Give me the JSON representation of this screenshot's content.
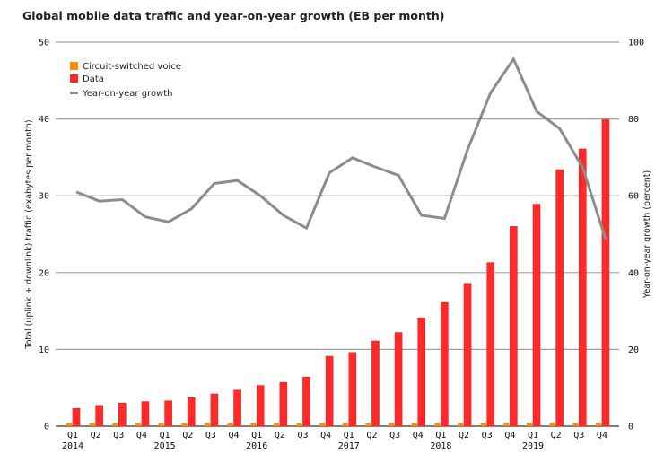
{
  "chart_data": {
    "type": "bar",
    "title": "Global mobile data traffic and year-on-year growth (EB per month)",
    "xlabel": "",
    "ylabel": "Total (uplink + downlink) traffic (exabytes per month)",
    "y2label": "Year-on-year growth (percent)",
    "ylim": [
      0,
      50
    ],
    "y2lim": [
      0,
      100
    ],
    "yticks": [
      "0",
      "10",
      "20",
      "30",
      "40",
      "50"
    ],
    "y2ticks": [
      "0",
      "20",
      "40",
      "60",
      "80",
      "100"
    ],
    "grid": true,
    "legend_position": "top-left",
    "categories": [
      "Q1",
      "Q2",
      "Q3",
      "Q4",
      "Q1",
      "Q2",
      "Q3",
      "Q4",
      "Q1",
      "Q2",
      "Q3",
      "Q4",
      "Q1",
      "Q2",
      "Q3",
      "Q4",
      "Q1",
      "Q2",
      "Q3",
      "Q4",
      "Q1",
      "Q2",
      "Q3",
      "Q4"
    ],
    "years": [
      {
        "label": "2014",
        "index": 0
      },
      {
        "label": "2015",
        "index": 4
      },
      {
        "label": "2016",
        "index": 8
      },
      {
        "label": "2017",
        "index": 12
      },
      {
        "label": "2018",
        "index": 16
      },
      {
        "label": "2019",
        "index": 20
      }
    ],
    "series": [
      {
        "name": "Circuit-switched voice",
        "type": "bar",
        "axis": "left",
        "color": "#ff8c00",
        "values": [
          0.4,
          0.4,
          0.4,
          0.4,
          0.4,
          0.4,
          0.4,
          0.4,
          0.4,
          0.4,
          0.4,
          0.4,
          0.4,
          0.4,
          0.4,
          0.4,
          0.4,
          0.4,
          0.4,
          0.4,
          0.4,
          0.4,
          0.4,
          0.4
        ]
      },
      {
        "name": "Data",
        "type": "bar",
        "axis": "left",
        "color": "#ff2a2a",
        "values": [
          2.3,
          2.7,
          3.0,
          3.2,
          3.3,
          3.7,
          4.2,
          4.7,
          5.3,
          5.7,
          6.4,
          9.1,
          9.6,
          11.1,
          12.2,
          14.1,
          16.1,
          18.6,
          21.3,
          26.0,
          28.9,
          33.4,
          36.1,
          39.9
        ]
      },
      {
        "name": "Year-on-year growth",
        "type": "line",
        "axis": "right",
        "color": "#8c8c8c",
        "values": [
          61,
          58.6,
          59,
          54.5,
          53.2,
          56.6,
          63.2,
          64,
          60,
          54.9,
          51.6,
          66,
          69.9,
          67.5,
          65.3,
          54.9,
          54.1,
          72,
          86.8,
          95.6,
          82,
          77.5,
          67.4,
          48.7
        ]
      }
    ]
  }
}
